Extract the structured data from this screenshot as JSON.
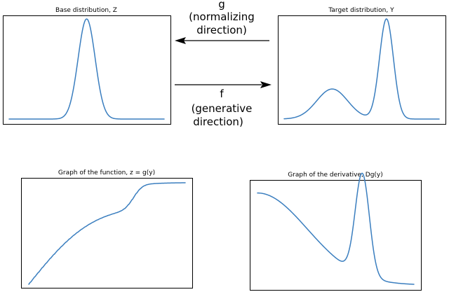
{
  "colors": {
    "curve": "#3a7ebf",
    "frame": "#000000"
  },
  "panels": [
    {
      "title": "Base distribution, Z"
    },
    {
      "title": "Target distribution, Y"
    },
    {
      "title": "Graph of the function, z = g(y)"
    },
    {
      "title": "Graph of the derivative, Dg(y)"
    }
  ],
  "arrows": {
    "normalizing": {
      "line1": "g",
      "line2": "(normalizing",
      "line3": "direction)"
    },
    "generative": {
      "line1": "f",
      "line2": "(generative",
      "line3": "direction)"
    }
  },
  "chart_data": [
    {
      "type": "line",
      "title": "Base distribution, Z",
      "xlabel": "",
      "ylabel": "",
      "xlim": [
        0,
        1
      ],
      "ylim": [
        0,
        1.1
      ],
      "series": [
        {
          "name": "",
          "curve": "single-gaussian",
          "x": [
            0.5
          ],
          "peak_y": 1.0,
          "width": 0.055
        }
      ]
    },
    {
      "type": "line",
      "title": "Target distribution, Y",
      "xlabel": "",
      "ylabel": "",
      "xlim": [
        0,
        1
      ],
      "ylim": [
        0,
        1.1
      ],
      "series": [
        {
          "name": "",
          "curve": "gaussian-mixture",
          "components": [
            {
              "mu": 0.31,
              "sigma": 0.1,
              "amp": 0.3
            },
            {
              "mu": 0.66,
              "sigma": 0.045,
              "amp": 1.0
            }
          ]
        }
      ]
    },
    {
      "type": "line",
      "title": "Graph of the function, z = g(y)",
      "xlabel": "",
      "ylabel": "",
      "xlim": [
        0,
        1
      ],
      "ylim": [
        0,
        1
      ],
      "series": [
        {
          "name": "",
          "curve": "cdf-of-target"
        }
      ]
    },
    {
      "type": "line",
      "title": "Graph of the derivative, Dg(y)",
      "xlabel": "",
      "ylabel": "",
      "xlim": [
        0,
        1
      ],
      "ylim": [
        0,
        1.1
      ],
      "series": [
        {
          "name": "",
          "curve": "derivative-of-g",
          "components": [
            {
              "mu": 0.0,
              "sigma": 0.32,
              "amp": 0.87
            },
            {
              "mu": 0.67,
              "sigma": 0.045,
              "amp": 0.96
            }
          ]
        }
      ]
    }
  ]
}
